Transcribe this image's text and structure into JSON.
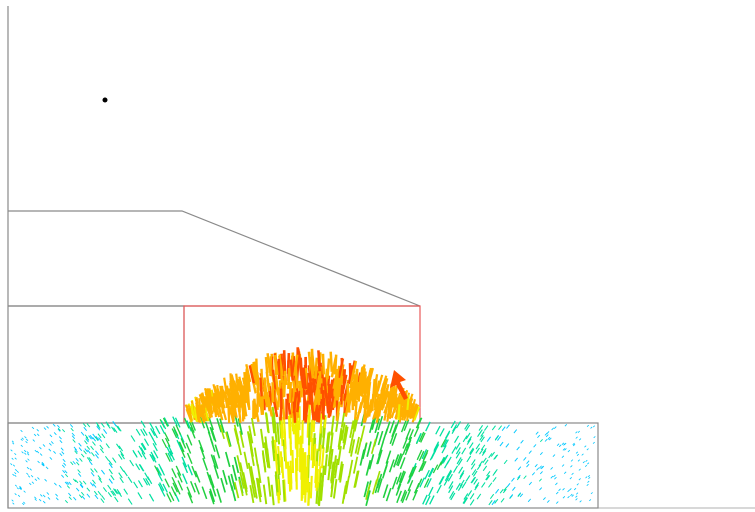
{
  "view": {
    "background": "#ffffff"
  },
  "colors": {
    "outline": "#8a8a8a",
    "highlight_region": "#e85a5a",
    "marker": "#000000",
    "vector_scale": [
      "#3050ff",
      "#00c8ff",
      "#00e0a0",
      "#20d040",
      "#a0e000",
      "#f0f000",
      "#ffb000",
      "#ff5000"
    ]
  },
  "diagram": {
    "regions": [
      {
        "name": "upper-layer"
      },
      {
        "name": "middle-layer"
      },
      {
        "name": "highlight-region"
      },
      {
        "name": "base-layer"
      }
    ],
    "marker": {
      "name": "point-marker"
    },
    "vector_field": {
      "name": "velocity-vector-field"
    }
  }
}
